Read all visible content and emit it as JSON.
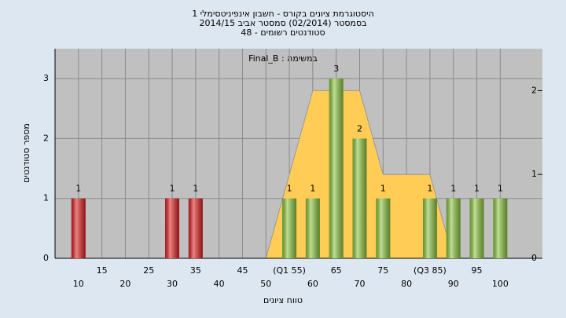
{
  "chart_data": {
    "type": "bar",
    "title": [
      "היסטוגרמת ציונים בקורס - חשבון אינפיניטסימלי 1",
      "בסמסטר  (02/2014)  סמסטר אביב 2014/15",
      "סטודנטים רשומים - 48"
    ],
    "annotation": "במשימה : Final_B",
    "y_label": "מספר סטודנטים",
    "x_label": "טווח ציונים",
    "x": [
      10,
      30,
      35,
      55,
      60,
      65,
      70,
      75,
      85,
      90,
      95,
      100
    ],
    "values": [
      1,
      1,
      1,
      1,
      1,
      3,
      2,
      1,
      1,
      1,
      1,
      1
    ],
    "colors": [
      "#e02020",
      "#e02020",
      "#e02020",
      "#8cc63f",
      "#8cc63f",
      "#8cc63f",
      "#8cc63f",
      "#8cc63f",
      "#8cc63f",
      "#8cc63f",
      "#8cc63f",
      "#8cc63f"
    ],
    "overlay": {
      "axis": "y2",
      "color": "#ffcc55",
      "x": [
        50,
        55,
        60,
        70,
        75,
        85,
        90
      ],
      "values": [
        0,
        1,
        2,
        2,
        1,
        1,
        0
      ]
    },
    "xlim": [
      5,
      109
    ],
    "xticks": [
      10,
      15,
      20,
      25,
      30,
      35,
      40,
      45,
      50,
      {
        "value": 55,
        "label": "(Q1 55)"
      },
      60,
      65,
      70,
      75,
      80,
      {
        "value": 85,
        "label": "(Q3 85)"
      },
      90,
      95,
      100
    ],
    "ylim": [
      0,
      3.5
    ],
    "yticks": [
      0,
      1,
      2,
      3
    ],
    "y2lim": [
      0,
      2.5
    ],
    "y2ticks": [
      0,
      1,
      2
    ],
    "grid": true
  }
}
